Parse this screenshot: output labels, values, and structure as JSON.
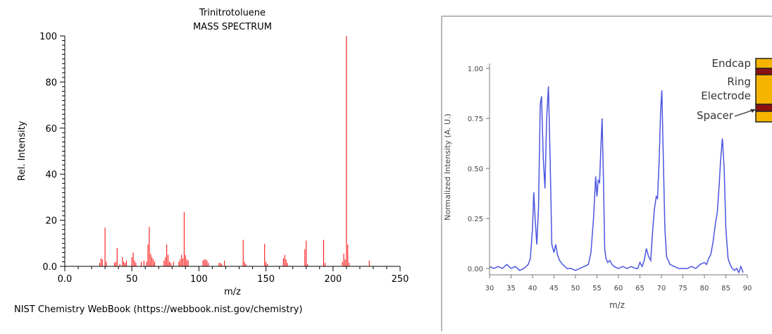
{
  "chart_data": [
    {
      "type": "bar",
      "title": "Trinitrotoluene",
      "subtitle": "MASS SPECTRUM",
      "xlabel": "m/z",
      "ylabel": "Rel. Intensity",
      "xlim": [
        0,
        250
      ],
      "ylim": [
        0,
        100
      ],
      "xticks": [
        "0.0",
        "50",
        "100",
        "150",
        "200",
        "250"
      ],
      "yticks": [
        "0.0",
        "20",
        "40",
        "60",
        "80",
        "100"
      ],
      "grid": false,
      "bar_color": "#ff0000",
      "footer": "NIST Chemistry WebBook (https://webbook.nist.gov/chemistry)",
      "x": [
        26,
        27,
        28,
        30,
        31,
        37,
        38,
        39,
        41,
        43,
        44,
        45,
        46,
        50,
        51,
        52,
        53,
        57,
        59,
        61,
        62,
        63,
        64,
        65,
        66,
        67,
        74,
        75,
        76,
        77,
        78,
        79,
        81,
        85,
        86,
        87,
        88,
        89,
        90,
        91,
        92,
        103,
        104,
        105,
        106,
        107,
        115,
        116,
        117,
        119,
        133,
        134,
        135,
        149,
        150,
        151,
        163,
        164,
        165,
        166,
        179,
        180,
        181,
        193,
        194,
        207,
        208,
        209,
        210,
        211,
        212,
        227
      ],
      "values": [
        1.5,
        3.5,
        3,
        16.8,
        2,
        1.5,
        2,
        8,
        1,
        4,
        2,
        1.5,
        2.5,
        4,
        6,
        2.5,
        1.5,
        2,
        2.5,
        2,
        9.5,
        17.2,
        5.5,
        4,
        3,
        2,
        2.5,
        4,
        9.5,
        5,
        2,
        1.5,
        2,
        2,
        3,
        5,
        3.5,
        23.5,
        5,
        3,
        2.5,
        2.5,
        3,
        3,
        2.5,
        1.5,
        1.5,
        1.5,
        1,
        2.5,
        11.5,
        2,
        1,
        9.8,
        2,
        1,
        3.5,
        5,
        3,
        1.5,
        7.5,
        11.2,
        1,
        11.5,
        1.5,
        2,
        5.5,
        3,
        100,
        9.4,
        1.5,
        2.5
      ]
    },
    {
      "type": "line",
      "xlabel": "m/z",
      "ylabel": "Normalized Intensity (A. U.)",
      "xlim": [
        30,
        90
      ],
      "ylim": [
        0,
        1
      ],
      "xticks": [
        "30",
        "35",
        "40",
        "45",
        "50",
        "55",
        "60",
        "65",
        "70",
        "75",
        "80",
        "85",
        "90"
      ],
      "yticks": [
        "0.00",
        "0.25",
        "0.50",
        "0.75",
        "1.00"
      ],
      "series_color": "#4a55e0",
      "series": [
        {
          "x": [
            30,
            31,
            32,
            33,
            34,
            35,
            36,
            37,
            38,
            39,
            39.5,
            40,
            40.3,
            40.6,
            41,
            41.4,
            41.8,
            42.1,
            42.5,
            42.9,
            43.3,
            43.7,
            44.1,
            44.5,
            45,
            45.4,
            45.8,
            46.3,
            47,
            48,
            49,
            50,
            51,
            52,
            53,
            53.6,
            54.2,
            54.7,
            55,
            55.3,
            55.6,
            55.9,
            56.2,
            56.5,
            56.8,
            57.1,
            57.5,
            58,
            58.5,
            59,
            60,
            61,
            62,
            63,
            64,
            64.5,
            65,
            65.5,
            66,
            66.5,
            67,
            67.5,
            68,
            68.4,
            68.8,
            69.1,
            69.5,
            69.8,
            70.1,
            70.4,
            70.8,
            71.2,
            72,
            73,
            74,
            75,
            76,
            77,
            78,
            79,
            80,
            80.5,
            81,
            81.5,
            82,
            82.6,
            83,
            83.4,
            83.8,
            84.2,
            84.6,
            85,
            85.5,
            86,
            86.5,
            87,
            87.5,
            88,
            88.5,
            89
          ],
          "values": [
            0.01,
            0.0,
            0.01,
            0.0,
            0.02,
            0.0,
            0.01,
            -0.01,
            0.0,
            0.02,
            0.05,
            0.2,
            0.38,
            0.25,
            0.12,
            0.3,
            0.82,
            0.86,
            0.55,
            0.4,
            0.75,
            0.91,
            0.55,
            0.12,
            0.08,
            0.12,
            0.07,
            0.04,
            0.02,
            0.0,
            0.0,
            -0.01,
            0.0,
            0.01,
            0.02,
            0.08,
            0.25,
            0.46,
            0.36,
            0.44,
            0.43,
            0.6,
            0.75,
            0.45,
            0.1,
            0.05,
            0.03,
            0.04,
            0.02,
            0.01,
            0.0,
            0.01,
            0.0,
            0.01,
            0.0,
            0.0,
            0.03,
            0.01,
            0.04,
            0.1,
            0.06,
            0.04,
            0.2,
            0.3,
            0.36,
            0.35,
            0.55,
            0.78,
            0.89,
            0.6,
            0.2,
            0.06,
            0.02,
            0.01,
            0.0,
            0.0,
            0.0,
            0.01,
            0.0,
            0.02,
            0.03,
            0.02,
            0.05,
            0.07,
            0.13,
            0.23,
            0.28,
            0.4,
            0.55,
            0.65,
            0.5,
            0.2,
            0.05,
            0.02,
            0.0,
            -0.01,
            0.0,
            -0.02,
            0.01,
            -0.02
          ]
        }
      ]
    }
  ],
  "diagram": {
    "labels": [
      "Endcap",
      "Ring",
      "Electrode",
      "Spacer"
    ],
    "colors": {
      "gold": "#f5b400",
      "red": "#8b1010",
      "outline": "#222222",
      "text": "#333333"
    }
  }
}
